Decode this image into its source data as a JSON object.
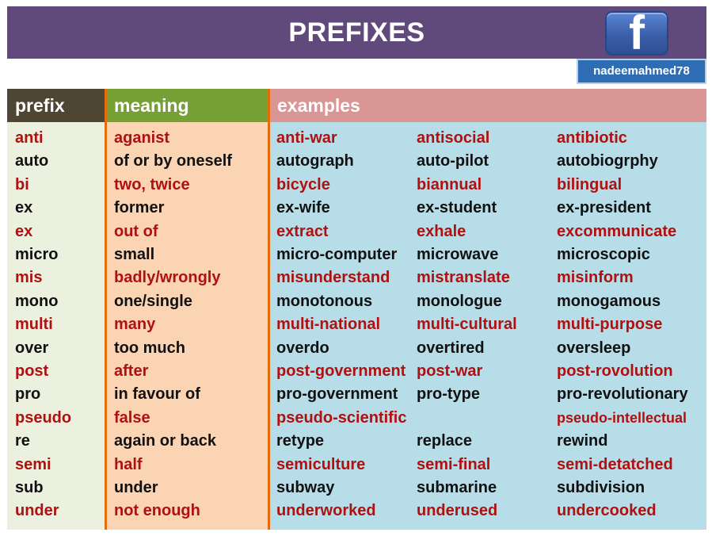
{
  "title": "PREFIXES",
  "social": {
    "icon": "facebook-icon",
    "icon_glyph": "f",
    "handle": "nadeemahmed78"
  },
  "headers": {
    "prefix": "prefix",
    "meaning": "meaning",
    "examples": "examples"
  },
  "colors": {
    "title_bg": "#604a7b",
    "red_text": "#b01010",
    "black_text": "#111111",
    "prefix_header": "#4f4533",
    "meaning_header": "#76a034",
    "examples_header": "#da9694",
    "prefix_bg": "#ebf1de",
    "meaning_bg": "#fbd4b4",
    "examples_bg": "#b7dde8",
    "divider": "#e46c0a"
  },
  "rows": [
    {
      "prefix": "anti",
      "meaning": "aganist",
      "examples": [
        "anti-war",
        "antisocial",
        "antibiotic"
      ]
    },
    {
      "prefix": "auto",
      "meaning": "of or by oneself",
      "examples": [
        "autograph",
        "auto-pilot",
        "autobiogrphy"
      ]
    },
    {
      "prefix": "bi",
      "meaning": "two, twice",
      "examples": [
        "bicycle",
        "biannual",
        "bilingual"
      ]
    },
    {
      "prefix": "ex",
      "meaning": "former",
      "examples": [
        "ex-wife",
        "ex-student",
        "ex-president"
      ]
    },
    {
      "prefix": "ex",
      "meaning": "out of",
      "examples": [
        "extract",
        "exhale",
        "excommunicate"
      ]
    },
    {
      "prefix": "micro",
      "meaning": "small",
      "examples": [
        "micro-computer",
        "microwave",
        "microscopic"
      ]
    },
    {
      "prefix": "mis",
      "meaning": "badly/wrongly",
      "examples": [
        "misunderstand",
        "mistranslate",
        "misinform"
      ]
    },
    {
      "prefix": "mono",
      "meaning": "one/single",
      "examples": [
        "monotonous",
        "monologue",
        "monogamous"
      ]
    },
    {
      "prefix": "multi",
      "meaning": "many",
      "examples": [
        "multi-national",
        "multi-cultural",
        "multi-purpose"
      ]
    },
    {
      "prefix": "over",
      "meaning": "too much",
      "examples": [
        "overdo",
        "overtired",
        "oversleep"
      ]
    },
    {
      "prefix": "post",
      "meaning": "after",
      "examples": [
        "post-government",
        "post-war",
        "post-rovolution"
      ]
    },
    {
      "prefix": "pro",
      "meaning": "in favour of",
      "examples": [
        "pro-government",
        "pro-type",
        "pro-revolutionary"
      ]
    },
    {
      "prefix": "pseudo",
      "meaning": "false",
      "examples": [
        "pseudo-scientific",
        "",
        "pseudo-intellectual"
      ]
    },
    {
      "prefix": "re",
      "meaning": "again or back",
      "examples": [
        "retype",
        "replace",
        "rewind"
      ]
    },
    {
      "prefix": "semi",
      "meaning": "half",
      "examples": [
        "semiculture",
        "semi-final",
        "semi-detatched"
      ]
    },
    {
      "prefix": "sub",
      "meaning": "under",
      "examples": [
        "subway",
        "submarine",
        "subdivision"
      ]
    },
    {
      "prefix": "under",
      "meaning": "not enough",
      "examples": [
        "underworked",
        "underused",
        "undercooked"
      ]
    }
  ]
}
